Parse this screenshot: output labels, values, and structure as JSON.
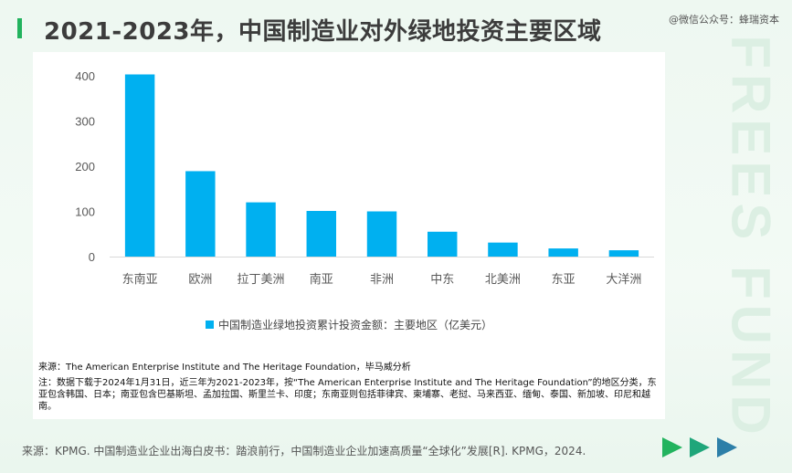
{
  "header": {
    "title": "2021-2023年，中国制造业对外绿地投资主要区域",
    "wechat": "@微信公众号：蜂瑞资本"
  },
  "watermark": "FREES FUND",
  "chart_data": {
    "type": "bar",
    "categories": [
      "东南亚",
      "欧洲",
      "拉丁美洲",
      "南亚",
      "非洲",
      "中东",
      "北美洲",
      "东亚",
      "大洋洲"
    ],
    "series": [
      {
        "name": "中国制造业绿地投资累计投资金额：主要地区（亿美元）",
        "values": [
          403,
          189,
          120,
          101,
          100,
          55,
          31,
          18,
          14
        ]
      }
    ],
    "ylim": [
      0,
      400
    ],
    "yticks": [
      0,
      100,
      200,
      300,
      400
    ],
    "legend_position": "bottom",
    "grid": false,
    "color": "#00b0f0"
  },
  "notes": {
    "source": "来源：The American Enterprise Institute and The Heritage Foundation，毕马威分析",
    "footnote": "注：数据下载于2024年1月31日，近三年为2021-2023年，按“The American Enterprise Institute and The Heritage Foundation”的地区分类，东亚包含韩国、日本；南亚包含巴基斯坦、孟加拉国、斯里兰卡、印度；东南亚则包括菲律宾、柬埔寨、老挝、马来西亚、缅甸、泰国、新加坡、印尼和越南。"
  },
  "footer": {
    "source": "来源：KPMG. 中国制造业企业出海白皮书：踏浪前行，中国制造业企业加速高质量“全球化”发展[R]. KPMG，2024."
  }
}
